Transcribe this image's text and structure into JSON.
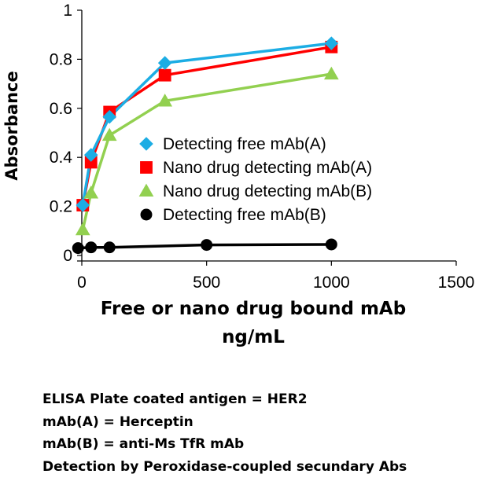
{
  "chart_data": {
    "type": "line",
    "xlabel": "Free or nano drug bound mAb\nng/mL",
    "ylabel": "Absorbance",
    "xlim": [
      0,
      1500
    ],
    "ylim": [
      0,
      1
    ],
    "x_ticks": [
      0,
      500,
      1000,
      1500
    ],
    "y_ticks": [
      0,
      0.2,
      0.4,
      0.6,
      0.8,
      1
    ],
    "x_tick_labels": [
      "0",
      "500",
      "1000",
      "1500"
    ],
    "y_tick_labels": [
      "0",
      "0.2",
      "0.4",
      "0.6",
      "0.8",
      "1"
    ],
    "grid": false,
    "legend_position": "center",
    "series": [
      {
        "name": "Detecting free mAb(A)",
        "color": "#1CADE4",
        "marker": "diamond",
        "x": [
          4,
          37,
          111,
          333,
          1000
        ],
        "y": [
          0.205,
          0.41,
          0.565,
          0.785,
          0.865
        ]
      },
      {
        "name": "Nano drug detecting mAb(A)",
        "color": "#FF0000",
        "marker": "square",
        "x": [
          4,
          37,
          111,
          333,
          1000
        ],
        "y": [
          0.205,
          0.38,
          0.585,
          0.735,
          0.85
        ]
      },
      {
        "name": "Nano drug detecting mAb(B)",
        "color": "#92D050",
        "marker": "triangle",
        "x": [
          4,
          37,
          111,
          333,
          1000
        ],
        "y": [
          0.105,
          0.255,
          0.49,
          0.63,
          0.74
        ]
      },
      {
        "name": "Detecting free mAb(B)",
        "color": "#000000",
        "marker": "circle",
        "x": [
          -15,
          37,
          111,
          500,
          1000
        ],
        "y": [
          0.03,
          0.033,
          0.033,
          0.043,
          0.045
        ]
      }
    ]
  },
  "notes": [
    "ELISA Plate coated antigen = HER2",
    "mAb(A) = Herceptin",
    "mAb(B) = anti-Ms TfR mAb",
    "Detection by Peroxidase-coupled secundary Abs"
  ]
}
